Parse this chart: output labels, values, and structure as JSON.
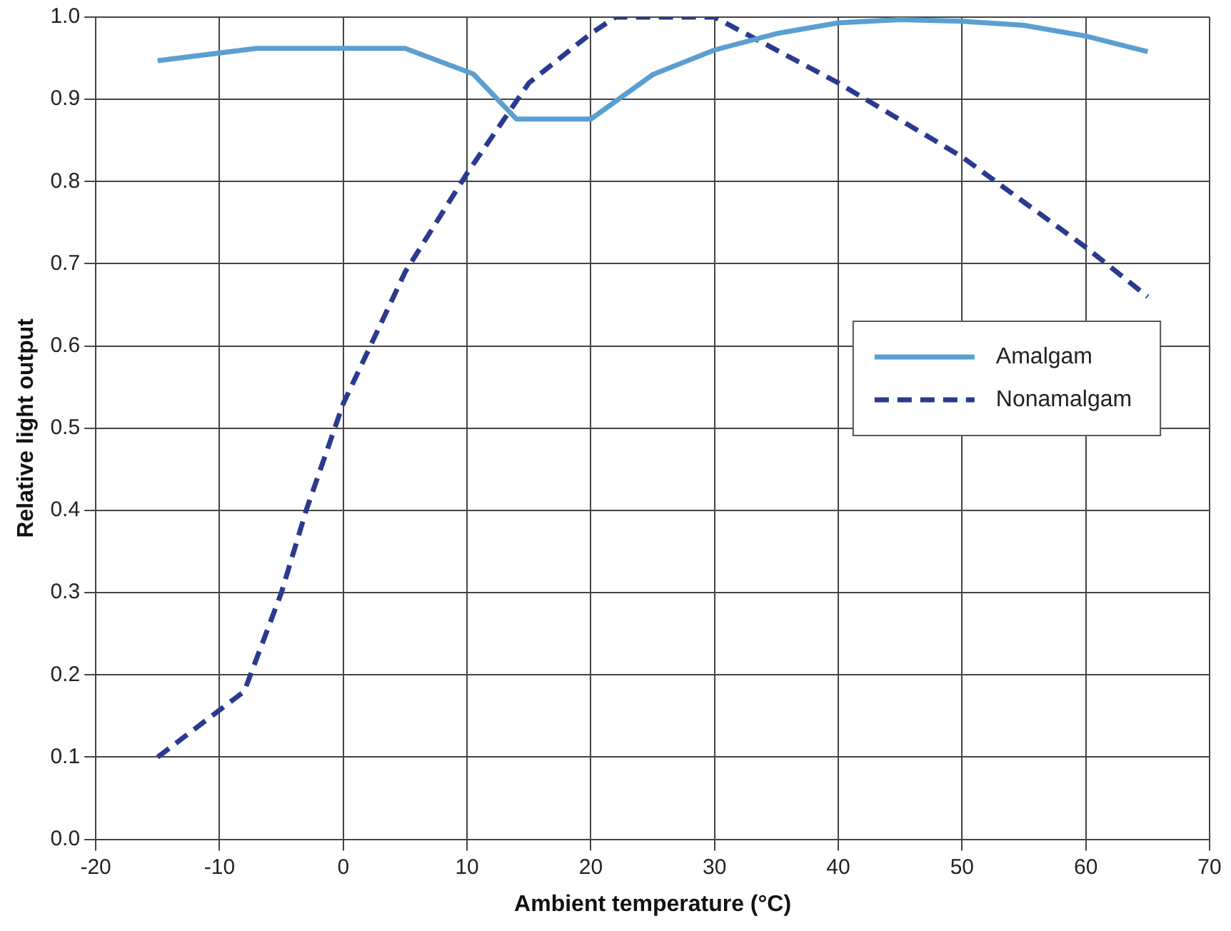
{
  "chart_data": {
    "type": "line",
    "xlabel": "Ambient temperature (°C)",
    "ylabel": "Relative light output",
    "xlim": [
      -20,
      70
    ],
    "xticks": [
      -20,
      -10,
      0,
      10,
      20,
      30,
      40,
      50,
      60,
      70
    ],
    "ylim": [
      0,
      1
    ],
    "yticks": [
      {
        "value": 0,
        "label": "0.0"
      },
      {
        "value": 0.1,
        "label": "0.1"
      },
      {
        "value": 0.2,
        "label": "0.2"
      },
      {
        "value": 0.3,
        "label": "0.3"
      },
      {
        "value": 0.4,
        "label": "0.4"
      },
      {
        "value": 0.5,
        "label": "0.5"
      },
      {
        "value": 0.6,
        "label": "0.6"
      },
      {
        "value": 0.7,
        "label": "0.7"
      },
      {
        "value": 0.8,
        "label": "0.8"
      },
      {
        "value": 0.9,
        "label": "0.9"
      },
      {
        "value": 1,
        "label": "1.0"
      }
    ],
    "grid": true,
    "legend": "right",
    "marker": "none",
    "series": [
      {
        "name": "Amalgam",
        "color": "#5b9fd0",
        "line_style": "solid",
        "x": [
          -15,
          -7,
          5,
          10.5,
          14,
          20,
          25,
          30,
          35,
          40,
          45,
          50,
          55,
          60,
          65
        ],
        "values": [
          0.947,
          0.962,
          0.962,
          0.931,
          0.876,
          0.876,
          0.93,
          0.96,
          0.98,
          0.993,
          0.997,
          0.995,
          0.99,
          0.977,
          0.958
        ]
      },
      {
        "name": "Nonamalgam",
        "color": "#2b3a8f",
        "line_style": "dashed",
        "x": [
          -15,
          -8,
          -5,
          -3,
          0,
          5,
          10,
          15,
          20,
          22,
          30,
          40,
          50,
          60,
          65
        ],
        "values": [
          0.1,
          0.18,
          0.3,
          0.4,
          0.53,
          0.69,
          0.81,
          0.92,
          0.98,
          1,
          1,
          0.92,
          0.83,
          0.72,
          0.66
        ]
      }
    ]
  }
}
